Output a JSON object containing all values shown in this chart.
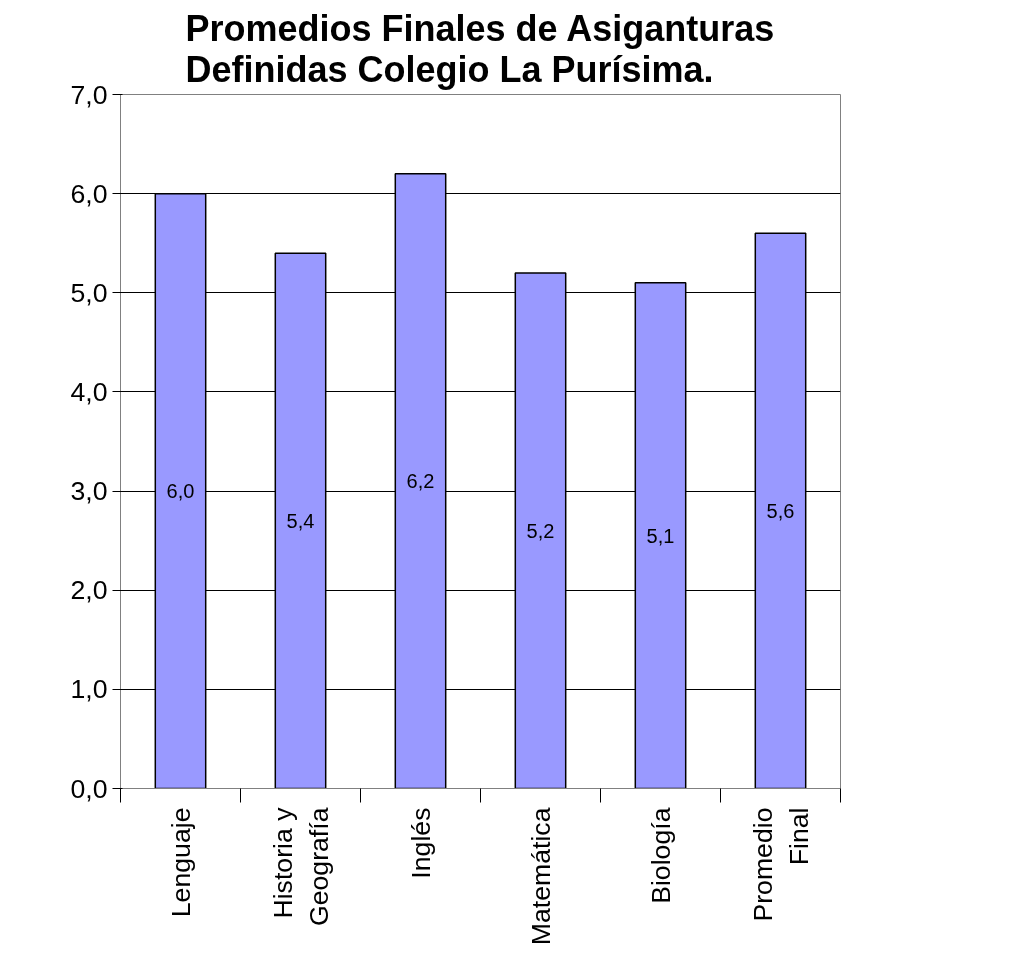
{
  "chart_data": {
    "type": "bar",
    "title": "Promedios Finales de Asiganturas\nDefinidas Colegio La Purísima.",
    "categories": [
      "Lenguaje",
      "Historia y\nGeografía",
      "Inglés",
      "Matemática",
      "Biología",
      "Promedio\nFinal"
    ],
    "values": [
      6.0,
      5.4,
      6.2,
      5.2,
      5.1,
      5.6
    ],
    "value_labels": [
      "6,0",
      "5,4",
      "6,2",
      "5,2",
      "5,1",
      "5,6"
    ],
    "color": "#9999ff",
    "ylim": [
      0,
      7
    ],
    "yticks": [
      {
        "value": 0,
        "label": "0,0"
      },
      {
        "value": 1,
        "label": "1,0"
      },
      {
        "value": 2,
        "label": "2,0"
      },
      {
        "value": 3,
        "label": "3,0"
      },
      {
        "value": 4,
        "label": "4,0"
      },
      {
        "value": 5,
        "label": "5,0"
      },
      {
        "value": 6,
        "label": "6,0"
      },
      {
        "value": 7,
        "label": "7,0"
      }
    ],
    "grid": "y"
  }
}
